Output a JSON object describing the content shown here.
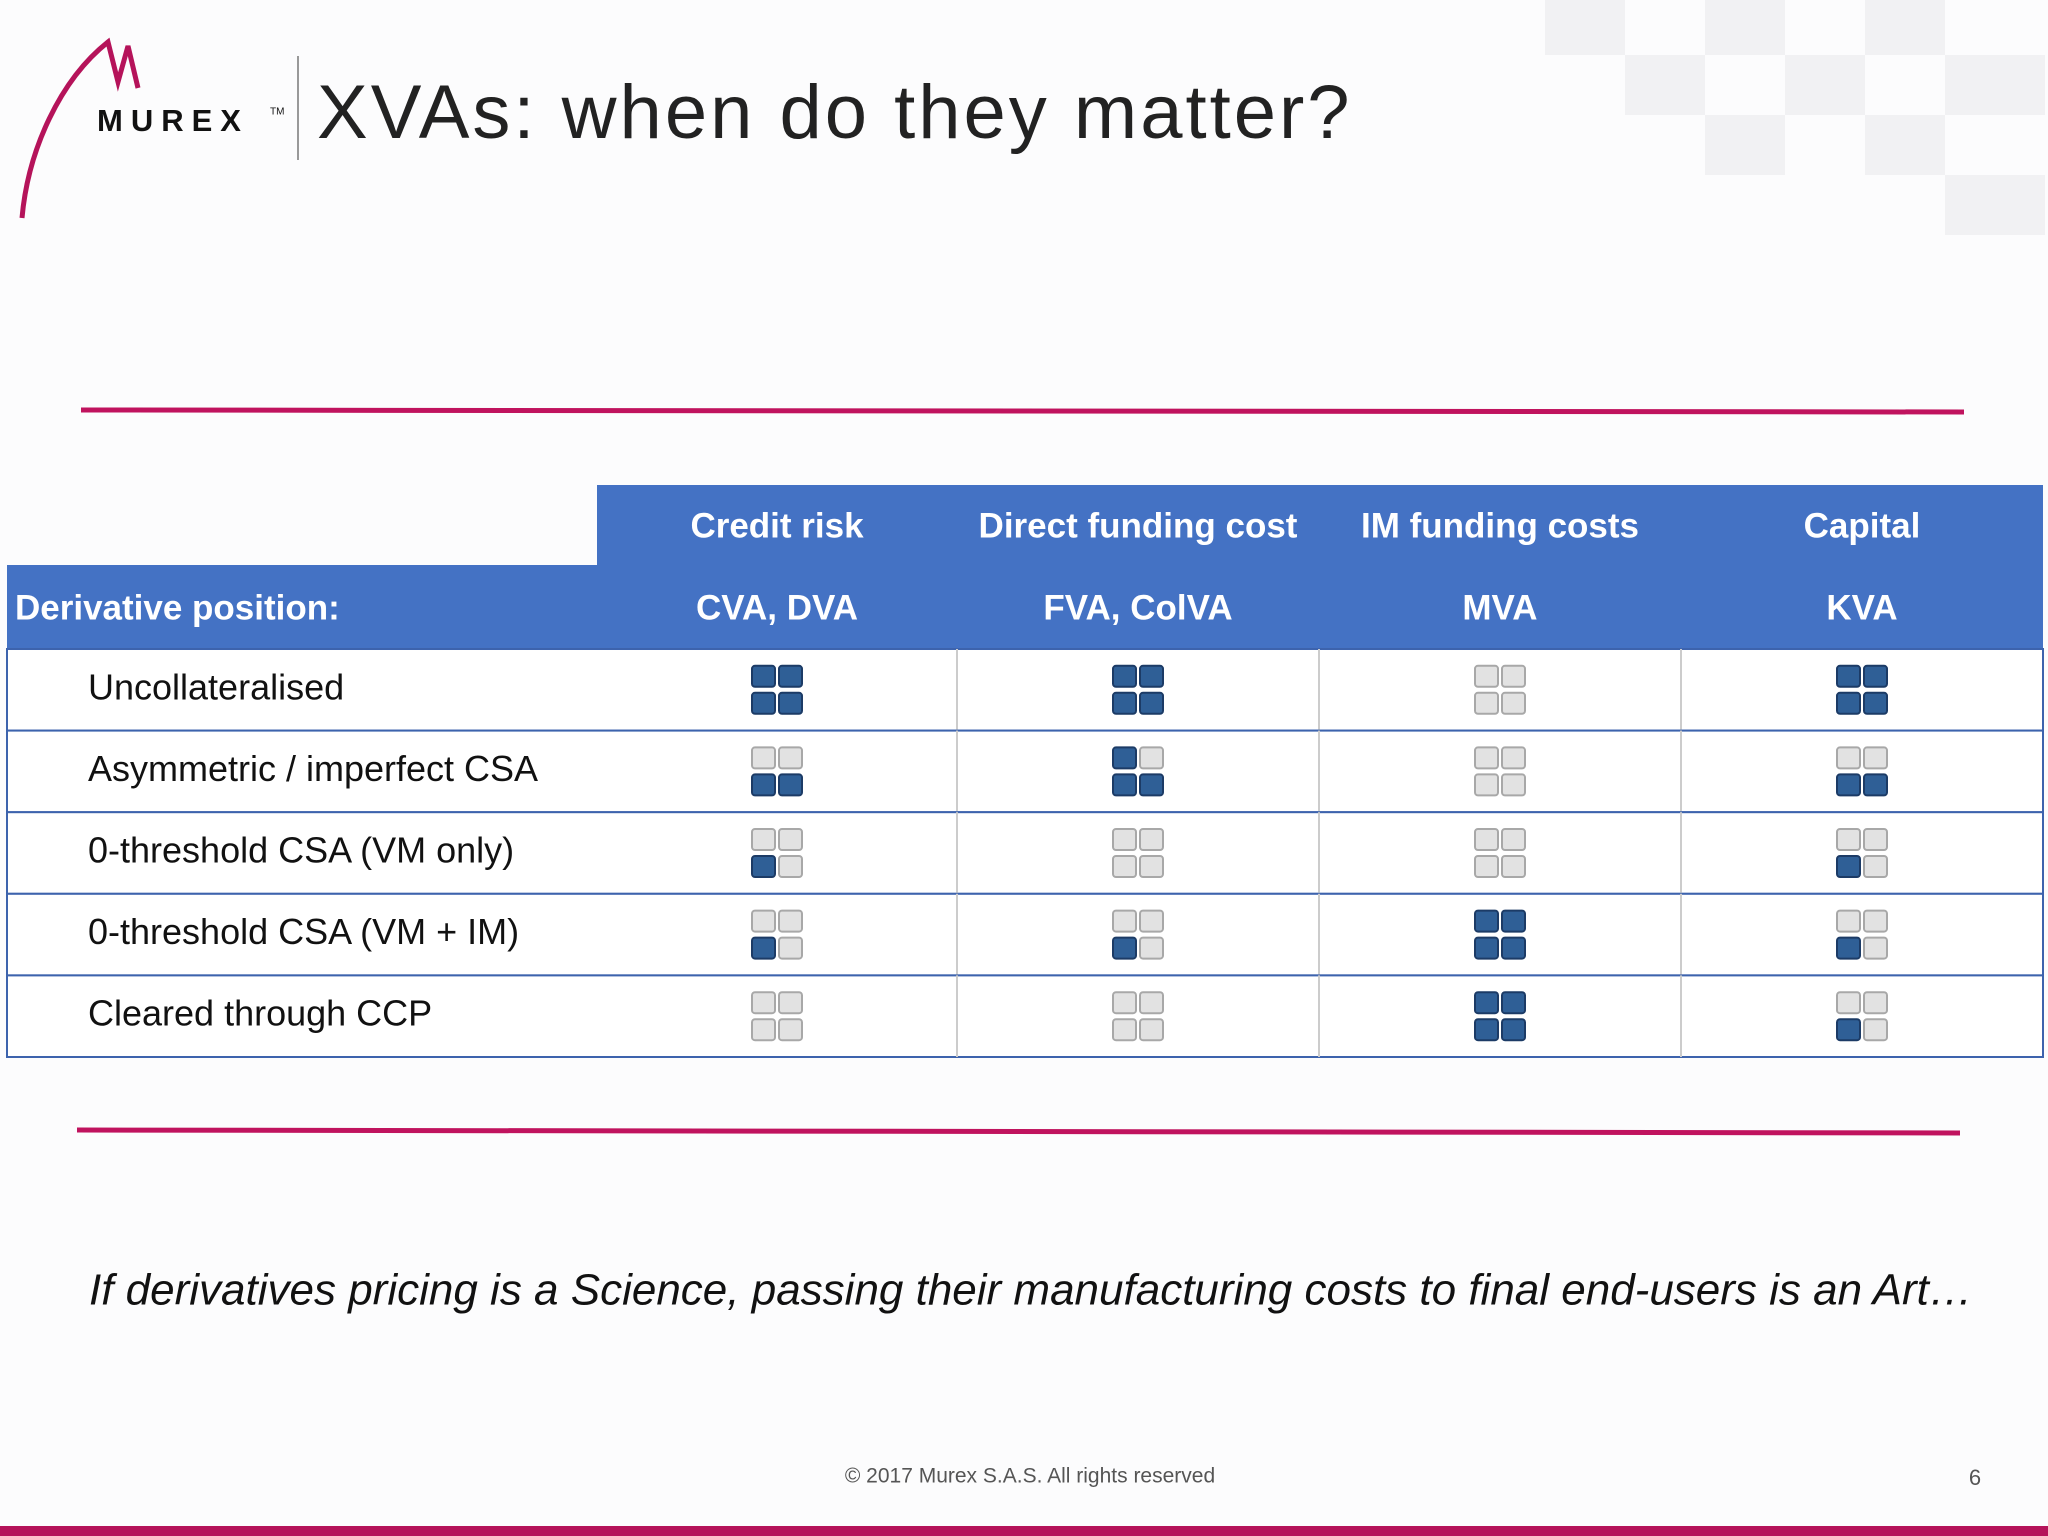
{
  "header": {
    "logo": "MUREX",
    "trademark": "TM",
    "title": "XVAs: when do they matter?"
  },
  "table": {
    "groups": [
      "Credit risk",
      "Direct funding cost",
      "IM funding costs",
      "Capital"
    ],
    "columns": [
      "Derivative position:",
      "CVA, DVA",
      "FVA, ColVA",
      "MVA",
      "KVA"
    ],
    "rows": [
      {
        "label": "Uncollateralised",
        "levels": [
          4,
          4,
          0,
          4
        ]
      },
      {
        "label": "Asymmetric / imperfect CSA",
        "levels": [
          2,
          3,
          0,
          2
        ]
      },
      {
        "label": "0-threshold CSA (VM only)",
        "levels": [
          1,
          0,
          0,
          1
        ]
      },
      {
        "label": "0-threshold CSA (VM + IM)",
        "levels": [
          1,
          1,
          4,
          1
        ]
      },
      {
        "label": "Cleared through CCP",
        "levels": [
          0,
          0,
          4,
          1
        ]
      }
    ]
  },
  "quote": "If derivatives pricing is a Science, passing their manufacturing costs to final end-users is an Art…",
  "footer": {
    "copyright": "© 2017 Murex S.A.S. All rights reserved",
    "page": 6
  }
}
